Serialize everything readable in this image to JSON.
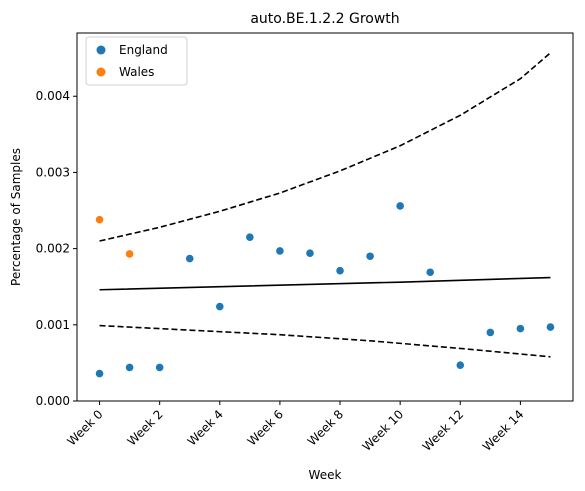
{
  "chart_data": {
    "type": "scatter",
    "title": "auto.BE.1.2.2 Growth",
    "xlabel": "Week",
    "ylabel": "Percentage of Samples",
    "xlim": [
      -0.75,
      15.75
    ],
    "ylim": [
      0,
      0.00483
    ],
    "x_ticks": [
      0,
      2,
      4,
      6,
      8,
      10,
      12,
      14
    ],
    "x_tick_labels": [
      "Week 0",
      "Week 2",
      "Week 4",
      "Week 6",
      "Week 8",
      "Week 10",
      "Week 12",
      "Week 14"
    ],
    "y_ticks": [
      0,
      0.001,
      0.002,
      0.003,
      0.004
    ],
    "y_tick_labels": [
      "0.000",
      "0.001",
      "0.002",
      "0.003",
      "0.004"
    ],
    "grid": false,
    "legend_position": "top-left",
    "series": [
      {
        "name": "England",
        "color": "#1f77b4",
        "points": [
          {
            "x": 0,
            "y": 0.00036
          },
          {
            "x": 1,
            "y": 0.00044
          },
          {
            "x": 2,
            "y": 0.00044
          },
          {
            "x": 3,
            "y": 0.00187
          },
          {
            "x": 4,
            "y": 0.00124
          },
          {
            "x": 5,
            "y": 0.00215
          },
          {
            "x": 6,
            "y": 0.00197
          },
          {
            "x": 7,
            "y": 0.00194
          },
          {
            "x": 8,
            "y": 0.00171
          },
          {
            "x": 9,
            "y": 0.0019
          },
          {
            "x": 10,
            "y": 0.00256
          },
          {
            "x": 11,
            "y": 0.00169
          },
          {
            "x": 12,
            "y": 0.00047
          },
          {
            "x": 13,
            "y": 0.0009
          },
          {
            "x": 14,
            "y": 0.00095
          },
          {
            "x": 15,
            "y": 0.00097
          }
        ]
      },
      {
        "name": "Wales",
        "color": "#ff7f0e",
        "points": [
          {
            "x": 0,
            "y": 0.00238
          },
          {
            "x": 1,
            "y": 0.00193
          }
        ]
      }
    ],
    "lines": [
      {
        "style": "solid",
        "color": "#000000",
        "points": [
          [
            0,
            0.00146
          ],
          [
            5,
            0.00151
          ],
          [
            10,
            0.00156
          ],
          [
            15,
            0.00162
          ]
        ]
      },
      {
        "style": "dashed",
        "color": "#000000",
        "points": [
          [
            0,
            0.0021
          ],
          [
            2,
            0.00228
          ],
          [
            4,
            0.00249
          ],
          [
            6,
            0.00273
          ],
          [
            8,
            0.00302
          ],
          [
            10,
            0.00335
          ],
          [
            12,
            0.00375
          ],
          [
            14,
            0.00423
          ],
          [
            15,
            0.00457
          ]
        ]
      },
      {
        "style": "dashed",
        "color": "#000000",
        "points": [
          [
            0,
            0.00099
          ],
          [
            3,
            0.00093
          ],
          [
            6,
            0.00087
          ],
          [
            9,
            0.00079
          ],
          [
            12,
            0.00069
          ],
          [
            15,
            0.00058
          ]
        ]
      }
    ]
  }
}
